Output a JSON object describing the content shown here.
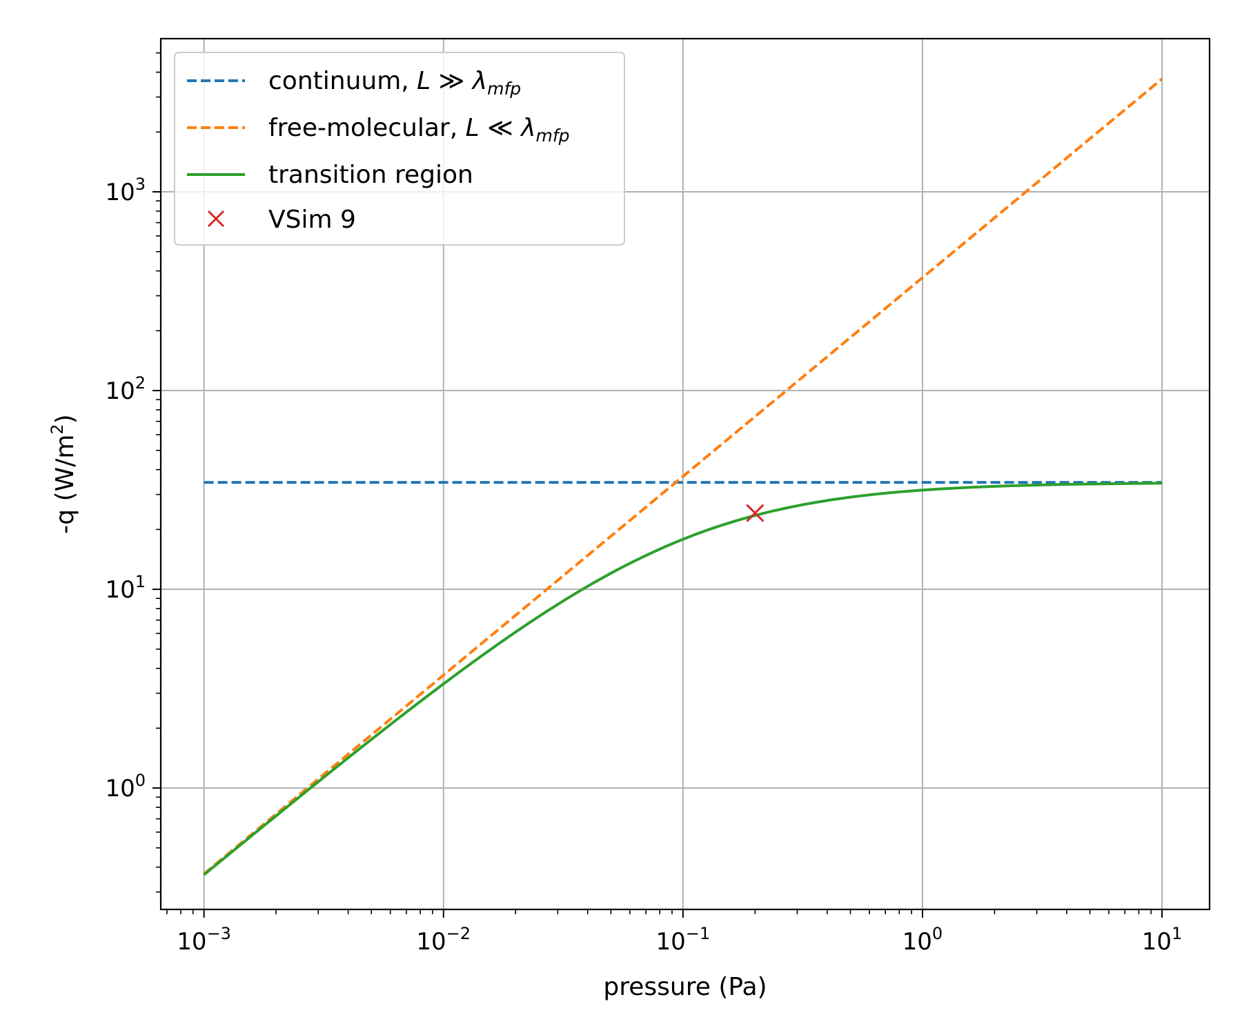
{
  "chart_data": {
    "type": "line",
    "title": "",
    "xlabel": "pressure (Pa)",
    "ylabel": "-q (W/m",
    "ylabel_sup": "2",
    "ylabel_end": ")",
    "xscale": "log",
    "yscale": "log",
    "xlim": [
      0.00066,
      15.8
    ],
    "ylim": [
      0.245,
      5900
    ],
    "grid": true,
    "legend_position": "top-left",
    "x_ticks": [
      {
        "base": "10",
        "exp": "−3",
        "value": 0.001
      },
      {
        "base": "10",
        "exp": "−2",
        "value": 0.01
      },
      {
        "base": "10",
        "exp": "−1",
        "value": 0.1
      },
      {
        "base": "10",
        "exp": "0",
        "value": 1
      },
      {
        "base": "10",
        "exp": "1",
        "value": 10
      }
    ],
    "y_ticks": [
      {
        "base": "10",
        "exp": "0",
        "value": 1
      },
      {
        "base": "10",
        "exp": "1",
        "value": 10
      },
      {
        "base": "10",
        "exp": "2",
        "value": 100
      },
      {
        "base": "10",
        "exp": "3",
        "value": 1000
      }
    ],
    "series": [
      {
        "kind": "line",
        "style": "dashed",
        "color": "#1f77b4",
        "label": {
          "pre": "continuum, ",
          "L": "L",
          "rel": " ≫ ",
          "lam": "λ",
          "sub": "mfp"
        },
        "x": [
          0.001,
          10
        ],
        "y": [
          34.5,
          34.5
        ]
      },
      {
        "kind": "line",
        "style": "dashed",
        "color": "#ff7f0e",
        "label": {
          "pre": "free-molecular, ",
          "L": "L",
          "rel": " ≪ ",
          "lam": "λ",
          "sub": "mfp"
        },
        "x": [
          0.001,
          0.01,
          0.1,
          1,
          10
        ],
        "y": [
          0.37,
          3.7,
          37,
          370,
          3700
        ]
      },
      {
        "kind": "line",
        "style": "solid",
        "color": "#2ca02c",
        "label": {
          "pre": "transition region"
        },
        "formula": "y = 34.5 * 370 * x / (34.5 + 370 * x)",
        "x_range": [
          0.001,
          10
        ]
      },
      {
        "kind": "marker",
        "marker": "x",
        "color": "#d62728",
        "label": {
          "pre": "VSim 9"
        },
        "x": [
          0.2
        ],
        "y": [
          24.2
        ]
      }
    ]
  }
}
